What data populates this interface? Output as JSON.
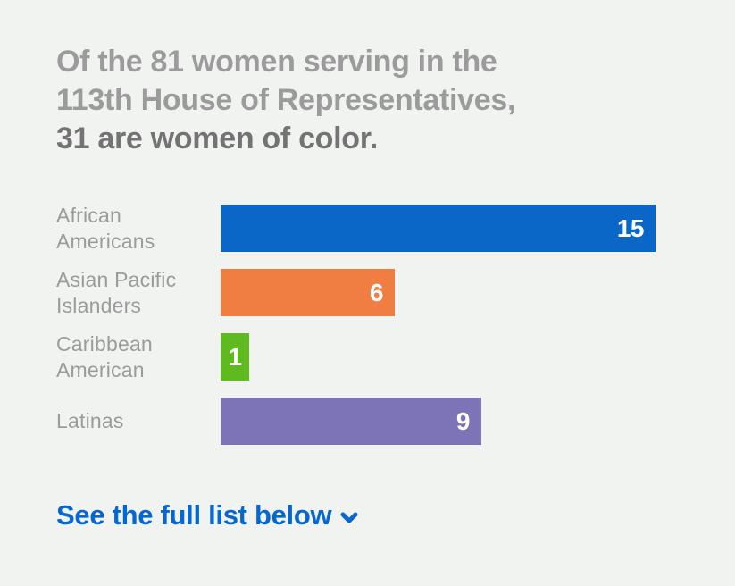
{
  "page": {
    "background_color": "#F1F3F1"
  },
  "heading": {
    "line1": "Of the 81 women serving in the",
    "line2": "113th House of Representatives,",
    "line3": "31 are women of color.",
    "muted_color": "#9B9B9B",
    "emphasis_color": "#737373"
  },
  "chart_data": {
    "type": "bar",
    "orientation": "horizontal",
    "title": "Of the 81 women serving in the 113th House of Representatives, 31 are women of color.",
    "categories": [
      "African Americans",
      "Asian Pacific Islanders",
      "Caribbean American",
      "Latinas"
    ],
    "category_label_lines": [
      [
        "African",
        "Americans"
      ],
      [
        "Asian Pacific",
        "Islanders"
      ],
      [
        "Caribbean",
        "American"
      ],
      [
        "Latinas"
      ]
    ],
    "values": [
      15,
      6,
      1,
      9
    ],
    "bar_colors": [
      "#0A66C7",
      "#F07E42",
      "#5EBA1F",
      "#7C74B6"
    ],
    "value_label_color": "#FFFFFF",
    "category_label_color": "#9B9B9B",
    "xlim": [
      0,
      15
    ],
    "grid": false,
    "legend": false,
    "value_labels_inside_bars": true
  },
  "footer_link": {
    "label": "See the full list below",
    "color": "#0667D0",
    "icon": "chevron-down-icon"
  }
}
